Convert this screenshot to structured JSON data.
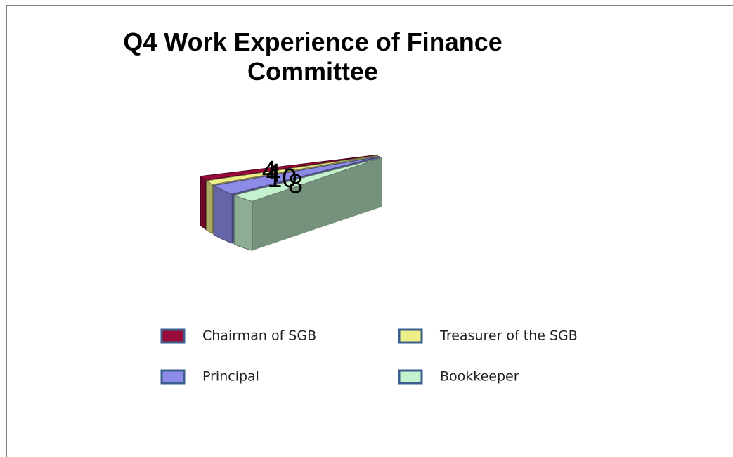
{
  "chart_data": {
    "type": "pie3d",
    "title": "Q4 Work Experience of Finance Committee",
    "categories": [
      "Chairman of SGB",
      "Treasurer of the SGB",
      "Principal",
      "Bookkeeper"
    ],
    "values": [
      4,
      4,
      10,
      8
    ],
    "colors": [
      "#9a0a3a",
      "#eeee88",
      "#8c8ce8",
      "#c4f2cf"
    ],
    "legend": "bottom"
  }
}
